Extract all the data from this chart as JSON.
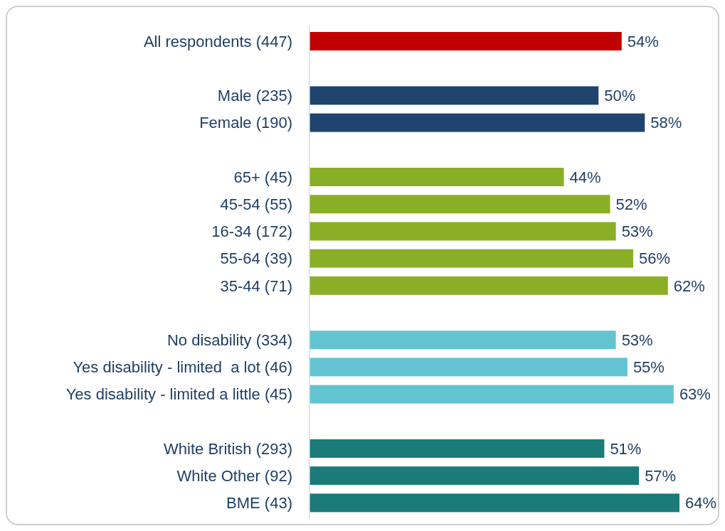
{
  "chart_data": {
    "type": "bar",
    "orientation": "horizontal",
    "data_labels": false,
    "categories": [
      "All respondents (447)",
      null,
      "Male (235)",
      "Female (190)",
      null,
      "65+ (45)",
      "45-54 (55)",
      "16-34 (172)",
      "55-64 (39)",
      "35-44 (71)",
      null,
      "No disability (334)",
      "Yes disability - limited  a lot (46)",
      "Yes disability - limited a little (45)",
      null,
      "White British (293)",
      "White Other (92)",
      "BME (43)"
    ],
    "values": [
      54,
      null,
      50,
      58,
      null,
      44,
      52,
      53,
      56,
      62,
      null,
      53,
      55,
      63,
      null,
      51,
      57,
      64
    ],
    "value_labels": [
      "54%",
      null,
      "50%",
      "58%",
      null,
      "44%",
      "52%",
      "53%",
      "56%",
      "62%",
      null,
      "53%",
      "55%",
      "63%",
      null,
      "51%",
      "57%",
      "64%"
    ],
    "colors": [
      "#c00000",
      null,
      "#1f456e",
      "#1f456e",
      null,
      "#8aaf26",
      "#8aaf26",
      "#8aaf26",
      "#8aaf26",
      "#8aaf26",
      null,
      "#63c4d1",
      "#63c4d1",
      "#63c4d1",
      null,
      "#1a7b78",
      "#1a7b78",
      "#1a7b78"
    ]
  }
}
